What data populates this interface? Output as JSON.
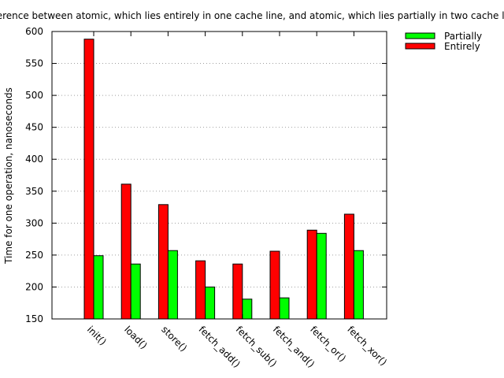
{
  "chart_data": {
    "type": "bar",
    "title": "Difference between atomic, which lies entirely in one cache line, and atomic, which lies partially in two cache lines",
    "xlabel": "",
    "ylabel": "Time for one operation, nanoseconds",
    "ylim": [
      150,
      600
    ],
    "yticks": [
      150,
      200,
      250,
      300,
      350,
      400,
      450,
      500,
      550,
      600
    ],
    "grid": "horizontal-dotted",
    "legend_position": "top-right",
    "categories": [
      "init()",
      "load()",
      "store()",
      "fetch_add()",
      "fetch_sub()",
      "fetch_and()",
      "fetch_or()",
      "fetch_xor()"
    ],
    "series": [
      {
        "name": "Partially",
        "color": "#00ff00",
        "values": [
          249,
          236,
          257,
          200,
          181,
          183,
          284,
          257
        ]
      },
      {
        "name": "Entirely",
        "color": "#ff0000",
        "values": [
          588,
          361,
          329,
          241,
          236,
          256,
          289,
          314
        ]
      }
    ]
  }
}
